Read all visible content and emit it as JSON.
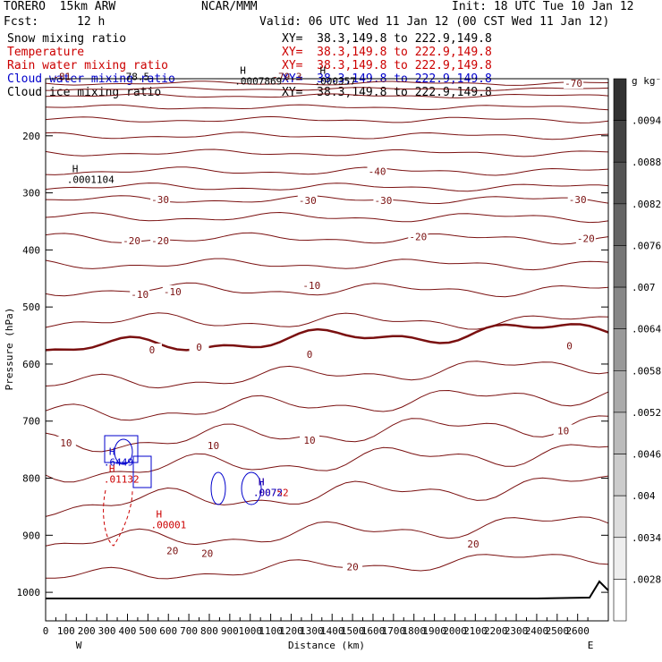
{
  "header": {
    "model": "TORERO  15km ARW",
    "center": "NCAR/MMM",
    "init": "Init: 18 UTC Tue 10 Jan 12",
    "fcst_label": "Fcst:",
    "fcst_value": "12 h",
    "valid": "Valid: 06 UTC Wed 11 Jan 12 (00 CST Wed 11 Jan 12)"
  },
  "fields": [
    {
      "name": "Snow mixing ratio",
      "xy": "XY=  38.3,149.8 to 222.9,149.8",
      "color": "#000000"
    },
    {
      "name": "Temperature",
      "xy": "XY=  38.3,149.8 to 222.9,149.8",
      "color": "#cc0000"
    },
    {
      "name": "Rain water mixing ratio",
      "xy": "XY=  38.3,149.8 to 222.9,149.8",
      "color": "#cc0000"
    },
    {
      "name": "Cloud water mixing ratio",
      "xy": "XY=  38.3,149.8 to 222.9,149.8",
      "color": "#0000cc"
    },
    {
      "name": "Cloud ice mixing ratio",
      "xy": "XY=  38.3,149.8 to 222.9,149.8",
      "color": "#000000"
    }
  ],
  "colors": {
    "temperature": "#7a1010",
    "zero_line": "#7a1010",
    "rain": "#cc0000",
    "cloud": "#0000cc",
    "ground": "#000000"
  },
  "chart_data": {
    "type": "contour",
    "xlabel": "Distance (km)",
    "ylabel": "Pressure (hPa)",
    "xlim": [
      0,
      2750
    ],
    "ylim": [
      1050,
      100
    ],
    "x_ticks": [
      "0",
      "100",
      "200",
      "300",
      "400",
      "500",
      "600",
      "700",
      "800",
      "900",
      "1000",
      "1100",
      "1200",
      "1300",
      "1400",
      "1500",
      "1600",
      "1700",
      "1800",
      "1900",
      "2000",
      "2100",
      "2200",
      "2300",
      "2400",
      "2500",
      "2600"
    ],
    "x_tick_values": [
      0,
      100,
      200,
      300,
      400,
      500,
      600,
      700,
      800,
      900,
      1000,
      1100,
      1200,
      1300,
      1400,
      1500,
      1600,
      1700,
      1800,
      1900,
      2000,
      2100,
      2200,
      2300,
      2400,
      2500,
      2600
    ],
    "y_ticks": [
      "200",
      "300",
      "400",
      "500",
      "600",
      "700",
      "800",
      "900",
      "1000"
    ],
    "y_tick_values": [
      200,
      300,
      400,
      500,
      600,
      700,
      800,
      900,
      1000
    ],
    "west_label": "W",
    "east_label": "E",
    "colorbar": {
      "unit": "g kg⁻¹",
      "labels": [
        ".0094",
        ".0088",
        ".0082",
        ".0076",
        ".007",
        ".0064",
        ".0058",
        ".0052",
        ".0046",
        ".004",
        ".0034",
        ".0028"
      ],
      "values": [
        0.0094,
        0.0088,
        0.0082,
        0.0076,
        0.007,
        0.0064,
        0.0058,
        0.0052,
        0.0046,
        0.004,
        0.0034,
        0.0028
      ]
    },
    "temperature_labels": [
      {
        "text": "-70",
        "x": 2580,
        "p": 108
      },
      {
        "text": "-40",
        "x": 1620,
        "p": 262
      },
      {
        "text": "-30",
        "x": 560,
        "p": 312
      },
      {
        "text": "-30",
        "x": 1280,
        "p": 313
      },
      {
        "text": "-30",
        "x": 1650,
        "p": 313
      },
      {
        "text": "-30",
        "x": 2600,
        "p": 312
      },
      {
        "text": "-20",
        "x": 420,
        "p": 384
      },
      {
        "text": "-20",
        "x": 560,
        "p": 384
      },
      {
        "text": "-20",
        "x": 1820,
        "p": 377
      },
      {
        "text": "-20",
        "x": 2640,
        "p": 380
      },
      {
        "text": "-10",
        "x": 460,
        "p": 478
      },
      {
        "text": "-10",
        "x": 620,
        "p": 473
      },
      {
        "text": "-10",
        "x": 1300,
        "p": 462
      },
      {
        "text": "0",
        "x": 520,
        "p": 575
      },
      {
        "text": "0",
        "x": 750,
        "p": 570
      },
      {
        "text": "0",
        "x": 1290,
        "p": 583
      },
      {
        "text": "0",
        "x": 2560,
        "p": 568
      },
      {
        "text": "10",
        "x": 100,
        "p": 738
      },
      {
        "text": "10",
        "x": 820,
        "p": 743
      },
      {
        "text": "10",
        "x": 1290,
        "p": 733
      },
      {
        "text": "10",
        "x": 2530,
        "p": 717
      },
      {
        "text": "20",
        "x": 620,
        "p": 927
      },
      {
        "text": "20",
        "x": 790,
        "p": 932
      },
      {
        "text": "20",
        "x": 1500,
        "p": 955
      },
      {
        "text": "20",
        "x": 2090,
        "p": 915
      }
    ],
    "h_markers": [
      {
        "h": "H",
        "value": ".0001104",
        "x": 130,
        "p": 283,
        "color": "#000000"
      },
      {
        "h": "H",
        "value": ".6449",
        "x": 310,
        "p": 778,
        "color": "#0000cc"
      },
      {
        "h": "H",
        "value": ".01132",
        "x": 310,
        "p": 808,
        "color": "#cc0000"
      },
      {
        "h": "H",
        "value": ".00001",
        "x": 540,
        "p": 888,
        "color": "#cc0000"
      },
      {
        "h": "H",
        "value": ".00752",
        "x": 1040,
        "p": 831,
        "color": "#cc0000"
      },
      {
        "h": "H",
        "value": ".0072",
        "x": 1040,
        "p": 831,
        "color": "#0000cc"
      },
      {
        "h": "H",
        "value": ".0007869",
        "x": 950,
        "p": 110,
        "color": "#000000"
      },
      {
        "h": "H",
        "value": ".000357",
        "x": 1340,
        "p": 110,
        "color": "#000000"
      }
    ],
    "top_labels": [
      {
        "text": "-81",
        "x": 80,
        "p": 102,
        "color": "#7a1010"
      },
      {
        "text": "78.5",
        "x": 450,
        "p": 102,
        "color": "#000000"
      },
      {
        "text": "-79.3",
        "x": 1180,
        "p": 102,
        "color": "#7a1010"
      }
    ]
  }
}
